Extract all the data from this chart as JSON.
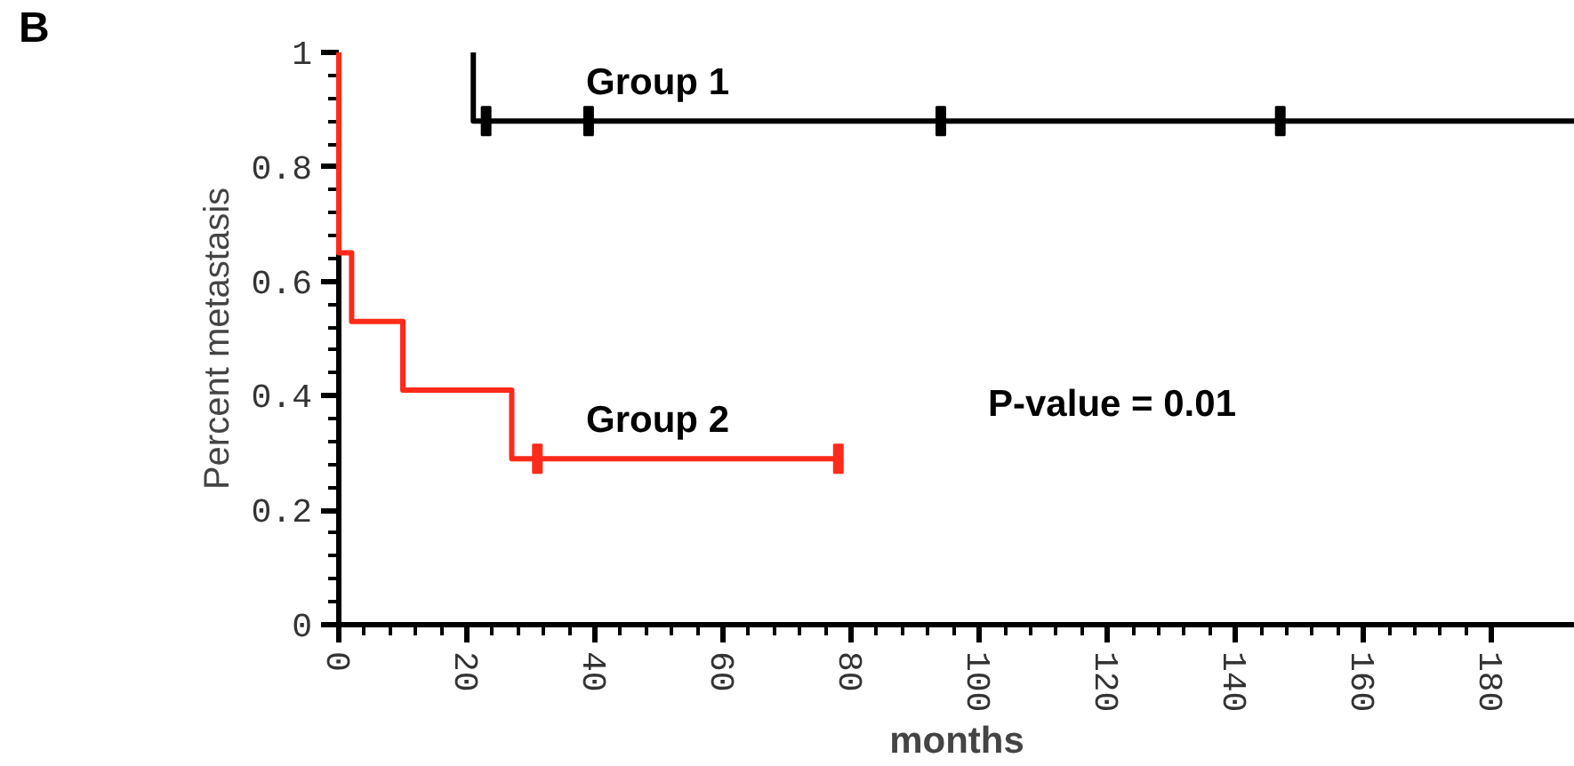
{
  "chart_data": {
    "type": "line",
    "xlabel": "months",
    "ylabel": "Percent metastasis",
    "xlim": [
      0,
      193
    ],
    "ylim": [
      0,
      1
    ],
    "xticks": [
      0,
      20,
      40,
      60,
      80,
      100,
      120,
      140,
      160,
      180
    ],
    "yticks": [
      0,
      0.2,
      0.4,
      0.6,
      0.8,
      1
    ],
    "grid": false,
    "legend": false,
    "line_style": "solid",
    "annotations": [
      "B",
      "P-value = 0.01"
    ],
    "series": [
      {
        "name": "Group 1",
        "color": "#000000",
        "marker": "none",
        "x": [
          21,
          21,
          193
        ],
        "values": [
          1,
          0.88,
          0.88
        ]
      },
      {
        "type": "scatter",
        "color": "#000000",
        "marker": "square",
        "x": [
          23,
          39,
          94,
          147
        ],
        "values": [
          0.88,
          0.88,
          0.88,
          0.88
        ]
      },
      {
        "name": "Group 2",
        "color": "#ff2a1a",
        "marker": "none",
        "x": [
          0,
          0,
          2,
          2,
          10,
          10,
          27,
          27,
          78
        ],
        "values": [
          1,
          0.65,
          0.65,
          0.53,
          0.53,
          0.41,
          0.41,
          0.29,
          0.29
        ]
      },
      {
        "type": "scatter",
        "color": "#ff2a1a",
        "marker": "square",
        "x": [
          31,
          78
        ],
        "values": [
          0.29,
          0.29
        ]
      }
    ]
  }
}
